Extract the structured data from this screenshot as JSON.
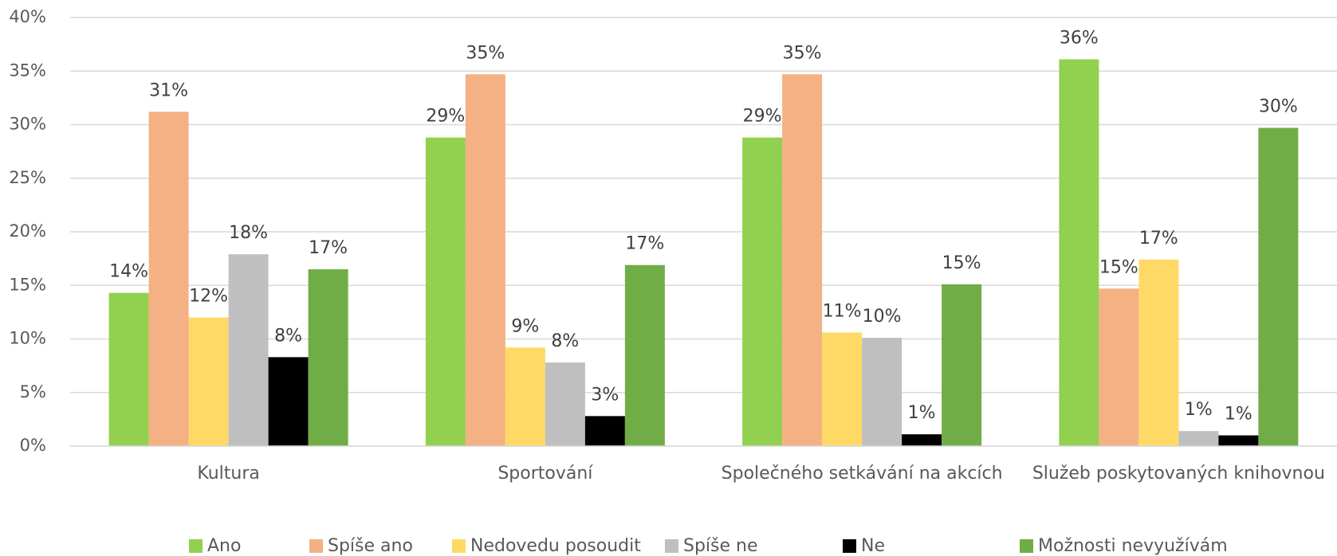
{
  "chart_data": {
    "type": "bar",
    "categories": [
      "Kultura",
      "Sportování",
      "Společného setkávání na akcích",
      "Služeb poskytovaných knihovnou"
    ],
    "series": [
      {
        "name": "Ano",
        "color": "#92d050",
        "values": [
          14.3,
          28.8,
          28.8,
          36.1
        ],
        "value_labels": [
          "14%",
          "29%",
          "29%",
          "36%"
        ]
      },
      {
        "name": "Spíše ano",
        "color": "#f4b183",
        "values": [
          31.2,
          34.7,
          34.7,
          14.7
        ],
        "value_labels": [
          "31%",
          "35%",
          "35%",
          "15%"
        ]
      },
      {
        "name": "Nedovedu posoudit",
        "color": "#ffd966",
        "values": [
          12.0,
          9.2,
          10.6,
          17.4
        ],
        "value_labels": [
          "12%",
          "9%",
          "11%",
          "17%"
        ]
      },
      {
        "name": "Spíše ne",
        "color": "#bfbfbf",
        "values": [
          17.9,
          7.8,
          10.1,
          1.4
        ],
        "value_labels": [
          "18%",
          "8%",
          "10%",
          "1%"
        ]
      },
      {
        "name": "Ne",
        "color": "#000000",
        "values": [
          8.3,
          2.8,
          1.1,
          1.0
        ],
        "value_labels": [
          "8%",
          "3%",
          "1%",
          "1%"
        ]
      },
      {
        "name": "Možnosti nevyužívám",
        "color": "#70ad47",
        "values": [
          16.5,
          16.9,
          15.1,
          29.7
        ],
        "value_labels": [
          "17%",
          "17%",
          "15%",
          "30%"
        ]
      }
    ],
    "ylim": [
      0,
      40
    ],
    "yticks": [
      {
        "value": 0,
        "label": "0%"
      },
      {
        "value": 5,
        "label": "5%"
      },
      {
        "value": 10,
        "label": "10%"
      },
      {
        "value": 15,
        "label": "15%"
      },
      {
        "value": 20,
        "label": "20%"
      },
      {
        "value": 25,
        "label": "25%"
      },
      {
        "value": 30,
        "label": "30%"
      },
      {
        "value": 35,
        "label": "35%"
      },
      {
        "value": 40,
        "label": "40%"
      }
    ],
    "grid": true,
    "legend": "bottom"
  }
}
